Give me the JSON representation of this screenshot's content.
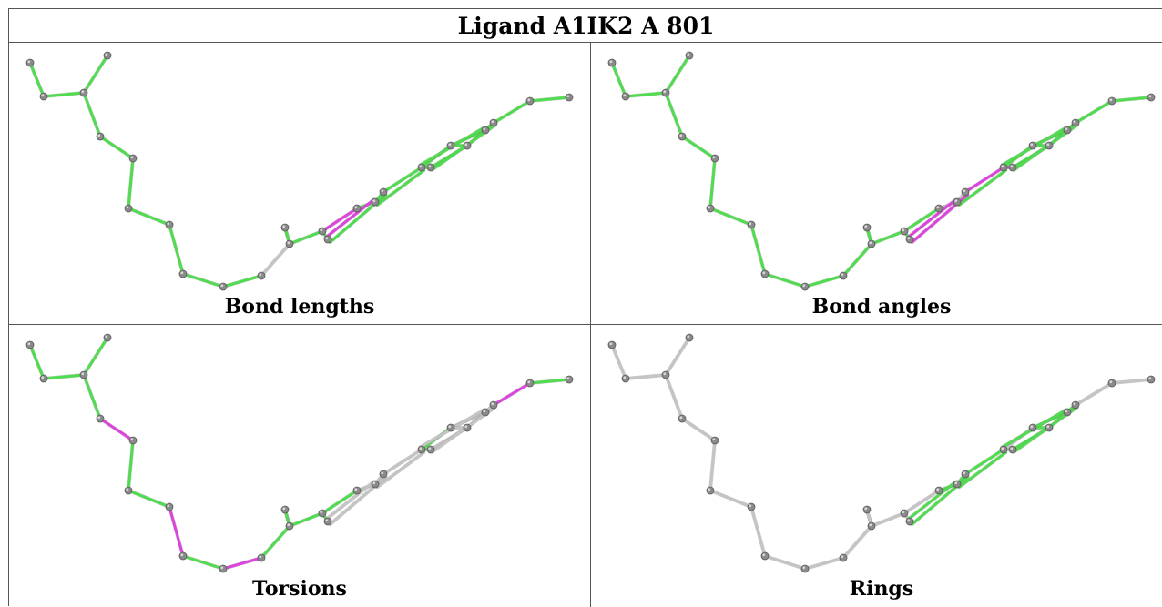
{
  "title": "Ligand A1IK2 A 801",
  "colors": {
    "green": "#4fdc4f",
    "green_dark": "#2d9a2d",
    "magenta": "#dd44dd",
    "gray_bond": "#c4c4c4",
    "atom": "#8a8a8a",
    "border": "#555555"
  },
  "panels": [
    {
      "label": "Bond lengths",
      "bond_colors": [
        "green",
        "green",
        "green",
        "green",
        "green",
        "green",
        "green",
        "green",
        "green",
        "green",
        "gray",
        "green",
        "green",
        "green",
        "magenta",
        "green",
        "magenta",
        "green",
        "green",
        "green",
        "green",
        "green",
        "green",
        "green",
        "green",
        "green",
        "green",
        "green",
        "green",
        "green",
        "green",
        "green",
        "green"
      ]
    },
    {
      "label": "Bond angles",
      "bond_colors": [
        "green",
        "green",
        "green",
        "green",
        "green",
        "green",
        "green",
        "green",
        "green",
        "green",
        "green",
        "green",
        "green",
        "green",
        "green",
        "gray",
        "magenta",
        "gray",
        "magenta",
        "magenta",
        "magenta",
        "green",
        "green",
        "green",
        "green",
        "green",
        "green",
        "green",
        "green",
        "green",
        "green",
        "green",
        "green"
      ]
    },
    {
      "label": "Torsions",
      "bond_colors": [
        "green",
        "green",
        "green",
        "green",
        "magenta",
        "green",
        "green",
        "magenta",
        "green",
        "magenta",
        "green",
        "magenta",
        "green",
        "green",
        "green",
        "gray",
        "gray",
        "gray",
        "gray",
        "gray",
        "green",
        "green",
        "gray",
        "gray",
        "gray",
        "gray",
        "gray",
        "gray",
        "gray",
        "gray",
        "magenta",
        "green",
        "green"
      ]
    },
    {
      "label": "Rings",
      "bond_colors": [
        "gray",
        "gray",
        "gray",
        "gray",
        "gray",
        "gray",
        "gray",
        "gray",
        "gray",
        "gray",
        "gray",
        "gray",
        "gray",
        "gray",
        "gray",
        "green",
        "green",
        "green",
        "green",
        "green",
        "gray",
        "gray",
        "green",
        "green",
        "green",
        "green",
        "green",
        "green",
        "green",
        "green",
        "gray",
        "gray",
        "gray"
      ]
    }
  ]
}
